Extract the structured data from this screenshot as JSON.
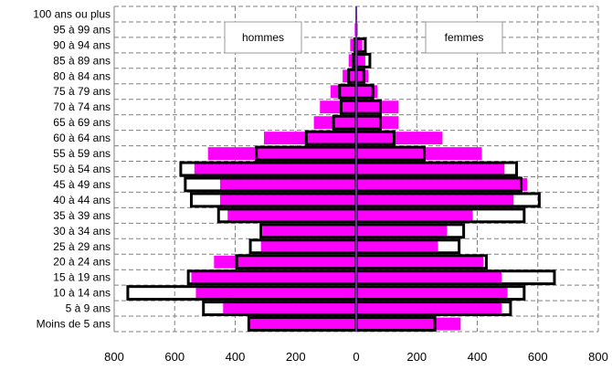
{
  "chart_data": {
    "type": "bar",
    "orientation": "horizontal",
    "title": "",
    "xlabel": "",
    "ylabel": "",
    "xlim": [
      -800,
      800
    ],
    "x_ticks": [
      -800,
      -600,
      -400,
      -200,
      0,
      200,
      400,
      600,
      800
    ],
    "x_tick_labels": [
      "800",
      "600",
      "400",
      "200",
      "0",
      "200",
      "400",
      "600",
      "800"
    ],
    "grid": true,
    "categories": [
      "Moins de 5 ans",
      "5 à 9 ans",
      "10 à 14 ans",
      "15 à 19 ans",
      "20 à 24 ans",
      "25 à 29 ans",
      "30 à 34 ans",
      "35 à 39 ans",
      "40 à 44 ans",
      "45 à 49 ans",
      "50 à 54 ans",
      "55 à 59 ans",
      "60 à 64 ans",
      "65 à 69 ans",
      "70 à 74 ans",
      "75 à 79 ans",
      "80 à 84 ans",
      "85 à 89 ans",
      "90 à 94 ans",
      "95 à 99 ans",
      "100 ans ou plus"
    ],
    "series": [
      {
        "name": "hommes",
        "side": "left",
        "filled_values": [
          355,
          440,
          530,
          545,
          470,
          315,
          310,
          425,
          450,
          450,
          535,
          490,
          305,
          140,
          120,
          85,
          45,
          25,
          20,
          5,
          0
        ],
        "outline_values": [
          355,
          505,
          755,
          555,
          395,
          350,
          315,
          455,
          545,
          565,
          580,
          330,
          165,
          75,
          50,
          55,
          25,
          10,
          5,
          0,
          0
        ]
      },
      {
        "name": "femmes",
        "side": "right",
        "filled_values": [
          345,
          480,
          500,
          480,
          420,
          270,
          300,
          385,
          520,
          565,
          490,
          415,
          285,
          140,
          140,
          70,
          40,
          30,
          20,
          5,
          0
        ],
        "outline_values": [
          260,
          510,
          555,
          655,
          430,
          340,
          355,
          555,
          605,
          545,
          530,
          225,
          125,
          80,
          80,
          55,
          25,
          45,
          30,
          0,
          0
        ]
      }
    ],
    "colors": {
      "filled": "#ff00ff",
      "outline": "#000000",
      "grid": "#808080",
      "center_line": "#6e2f9e"
    },
    "legend": {
      "placement": "top-center",
      "left_label": "hommes",
      "right_label": "femmes"
    }
  }
}
